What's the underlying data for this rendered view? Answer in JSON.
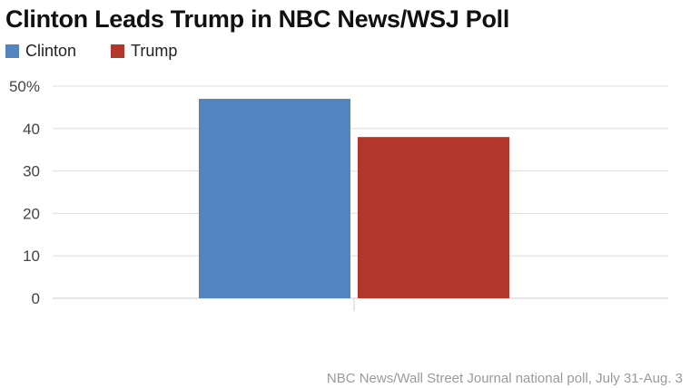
{
  "colors": {
    "clinton": "#5384c0",
    "trump": "#b3362b",
    "grid": "#dddddd"
  },
  "chart_data": {
    "type": "bar",
    "title": "Clinton Leads Trump in NBC News/WSJ Poll",
    "xlabel": "",
    "ylabel": "",
    "categories": [
      ""
    ],
    "series": [
      {
        "name": "Clinton",
        "values": [
          47
        ],
        "color": "#5384c0"
      },
      {
        "name": "Trump",
        "values": [
          38
        ],
        "color": "#b3362b"
      }
    ],
    "ylim": [
      0,
      50
    ],
    "yticks": [
      0,
      10,
      20,
      30,
      40,
      50
    ],
    "ytick_labels": [
      "0",
      "10",
      "20",
      "30",
      "40",
      "50%"
    ],
    "grid": true,
    "legend": "top-left",
    "source": "NBC News/Wall Street Journal national poll, July 31-Aug. 3"
  }
}
